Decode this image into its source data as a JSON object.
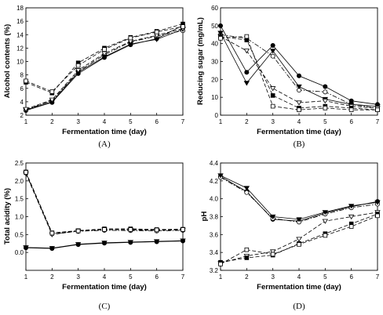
{
  "chart_data": [
    {
      "type": "line",
      "panel_label": "(A)",
      "xlabel": "Fermentation time (day)",
      "ylabel": "Alcohol contents (%)",
      "x": [
        1,
        2,
        3,
        4,
        5,
        6,
        7
      ],
      "xlim": [
        1,
        7
      ],
      "ylim": [
        2,
        18
      ],
      "yticks": [
        2,
        4,
        6,
        8,
        10,
        12,
        14,
        16,
        18
      ],
      "grid": false,
      "series": [
        {
          "marker": "filled-circle",
          "line_style": "solid",
          "values": [
            2.7,
            3.9,
            8.2,
            10.6,
            12.5,
            13.4,
            15.4
          ]
        },
        {
          "marker": "open-circle",
          "line_style": "dash-dot",
          "values": [
            2.8,
            4.2,
            8.5,
            11.0,
            12.9,
            13.8,
            14.6
          ]
        },
        {
          "marker": "filled-triangle",
          "line_style": "solid",
          "values": [
            2.8,
            4.0,
            8.4,
            10.7,
            12.6,
            13.3,
            14.8
          ]
        },
        {
          "marker": "open-triangle",
          "line_style": "dashed",
          "values": [
            2.9,
            4.3,
            8.7,
            11.2,
            13.0,
            13.9,
            14.9
          ]
        },
        {
          "marker": "filled-square",
          "line_style": "dashed",
          "values": [
            6.9,
            5.3,
            9.8,
            12.0,
            13.6,
            14.5,
            15.6
          ]
        },
        {
          "marker": "open-square",
          "line_style": "dashed",
          "values": [
            7.1,
            5.5,
            9.4,
            11.8,
            13.5,
            14.4,
            15.2
          ]
        }
      ]
    },
    {
      "type": "line",
      "panel_label": "(B)",
      "xlabel": "Fermentation time (day)",
      "ylabel": "Reducing sugar (mg/mL)",
      "x": [
        1,
        2,
        3,
        4,
        5,
        6,
        7
      ],
      "xlim": [
        1,
        7
      ],
      "ylim": [
        0,
        60
      ],
      "yticks": [
        0,
        10,
        20,
        30,
        40,
        50,
        60
      ],
      "grid": false,
      "series": [
        {
          "marker": "filled-circle",
          "line_style": "solid",
          "values": [
            50,
            24,
            39,
            22,
            16,
            8,
            6
          ]
        },
        {
          "marker": "open-circle",
          "line_style": "dash-dot",
          "values": [
            45,
            43,
            33,
            14,
            13,
            6,
            4
          ]
        },
        {
          "marker": "filled-triangle",
          "line_style": "solid",
          "values": [
            46,
            18,
            36,
            16,
            9,
            6,
            5
          ]
        },
        {
          "marker": "open-triangle",
          "line_style": "dashed",
          "values": [
            44,
            36,
            15,
            7,
            8,
            5,
            4
          ]
        },
        {
          "marker": "filled-square",
          "line_style": "dashed",
          "values": [
            44,
            42,
            11,
            4,
            5,
            4,
            3
          ]
        },
        {
          "marker": "open-square",
          "line_style": "dashed",
          "values": [
            43,
            44,
            5,
            3,
            4,
            3,
            3
          ]
        }
      ]
    },
    {
      "type": "line",
      "panel_label": "(C)",
      "xlabel": "Fermentation time (day)",
      "ylabel": "Total acidity (%)",
      "x": [
        1,
        2,
        3,
        4,
        5,
        6,
        7
      ],
      "xlim": [
        1,
        7
      ],
      "ylim": [
        -0.5,
        2.5
      ],
      "yticks": [
        0.0,
        0.5,
        1.0,
        1.5,
        2.0,
        2.5
      ],
      "grid": false,
      "series": [
        {
          "marker": "filled-circle",
          "line_style": "solid",
          "values": [
            0.13,
            0.11,
            0.22,
            0.26,
            0.28,
            0.3,
            0.32
          ]
        },
        {
          "marker": "open-circle",
          "line_style": "dash-dot",
          "values": [
            2.22,
            0.52,
            0.59,
            0.62,
            0.61,
            0.6,
            0.62
          ]
        },
        {
          "marker": "filled-triangle",
          "line_style": "solid",
          "values": [
            0.14,
            0.12,
            0.23,
            0.27,
            0.29,
            0.31,
            0.33
          ]
        },
        {
          "marker": "open-triangle",
          "line_style": "dashed",
          "values": [
            2.2,
            0.5,
            0.6,
            0.64,
            0.63,
            0.62,
            0.63
          ]
        },
        {
          "marker": "filled-square",
          "line_style": "dashed",
          "values": [
            2.25,
            0.55,
            0.61,
            0.66,
            0.66,
            0.64,
            0.65
          ]
        },
        {
          "marker": "open-square",
          "line_style": "dashed",
          "values": [
            2.24,
            0.54,
            0.6,
            0.64,
            0.64,
            0.63,
            0.64
          ]
        }
      ]
    },
    {
      "type": "line",
      "panel_label": "(D)",
      "xlabel": "Fermentation time (day)",
      "ylabel": "pH",
      "x": [
        1,
        2,
        3,
        4,
        5,
        6,
        7
      ],
      "xlim": [
        1,
        7
      ],
      "ylim": [
        3.2,
        4.4
      ],
      "yticks": [
        3.2,
        3.4,
        3.6,
        3.8,
        4.0,
        4.2,
        4.4
      ],
      "grid": false,
      "series": [
        {
          "marker": "filled-circle",
          "line_style": "solid",
          "values": [
            4.25,
            4.08,
            3.77,
            3.75,
            3.84,
            3.91,
            3.97
          ]
        },
        {
          "marker": "open-circle",
          "line_style": "dash-dot",
          "values": [
            4.24,
            4.07,
            3.78,
            3.74,
            3.83,
            3.9,
            3.94
          ]
        },
        {
          "marker": "filled-triangle",
          "line_style": "solid",
          "values": [
            4.26,
            4.12,
            3.8,
            3.77,
            3.85,
            3.92,
            3.96
          ]
        },
        {
          "marker": "open-triangle",
          "line_style": "dashed",
          "values": [
            3.28,
            3.36,
            3.41,
            3.55,
            3.75,
            3.8,
            3.85
          ]
        },
        {
          "marker": "filled-square",
          "line_style": "dashed",
          "values": [
            3.29,
            3.34,
            3.37,
            3.5,
            3.61,
            3.72,
            3.83
          ]
        },
        {
          "marker": "open-square",
          "line_style": "dashed",
          "values": [
            3.27,
            3.43,
            3.38,
            3.49,
            3.59,
            3.69,
            3.81
          ]
        }
      ]
    }
  ]
}
